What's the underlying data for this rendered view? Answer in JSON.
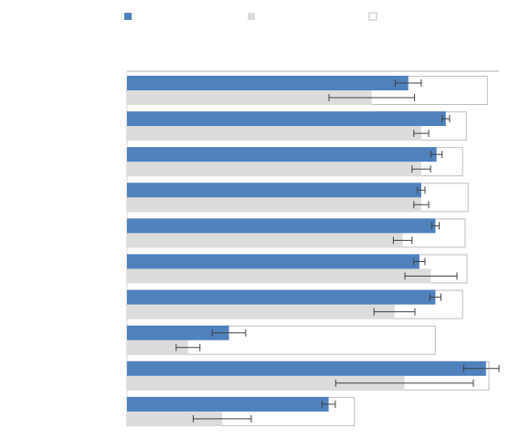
{
  "chart_data": {
    "type": "bar",
    "orientation": "horizontal",
    "title": "",
    "xlabel": "",
    "ylabel": "",
    "xlim": [
      0,
      100
    ],
    "grid": false,
    "legend": {
      "placement": "top",
      "entries": [
        "",
        "",
        ""
      ]
    },
    "categories": [
      "",
      "",
      "",
      "",
      "",
      "",
      "",
      "",
      "",
      ""
    ],
    "series": [
      {
        "color": "#4f81bd",
        "values": [
          75.6,
          85.7,
          83.2,
          79.1,
          82.9,
          78.6,
          82.9,
          27.4,
          96.5,
          54.2
        ],
        "error": [
          3.5,
          1.0,
          1.5,
          1.0,
          1.0,
          1.5,
          1.5,
          4.5,
          6.0,
          1.8
        ]
      },
      {
        "color": "#dcdcdc",
        "values": [
          65.8,
          79.1,
          79.1,
          79.1,
          74.1,
          81.7,
          71.9,
          16.4,
          74.6,
          25.6
        ],
        "error": [
          11.5,
          2.0,
          2.5,
          2.0,
          2.5,
          7.0,
          5.5,
          3.2,
          18.5,
          7.8
        ]
      },
      {
        "color": "#ffffff",
        "values": [
          96.9,
          91.2,
          90.2,
          91.7,
          90.9,
          91.4,
          90.2,
          82.9,
          97.3,
          61.1
        ]
      }
    ]
  }
}
